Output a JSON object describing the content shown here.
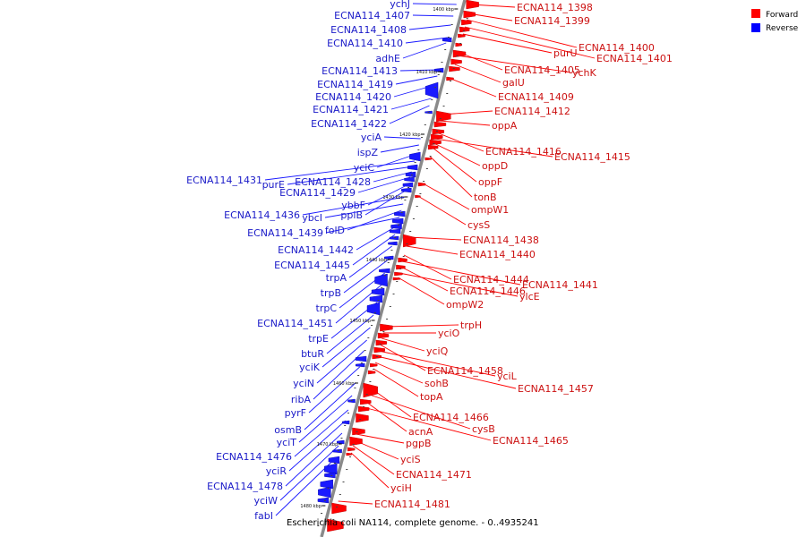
{
  "caption": "Escherichia coli NA114, complete genome. - 0..4935241",
  "legend": {
    "forward": {
      "label": "Forward",
      "color": "#ff0000"
    },
    "reverse": {
      "label": "Reverse",
      "color": "#0000ff"
    }
  },
  "ticks": [
    "1400 kbp",
    "1410 kbp",
    "1420 kbp",
    "1430 kbp",
    "1440 kbp",
    "1450 kbp",
    "1460 kbp",
    "1470 kbp",
    "1480 kbp"
  ],
  "forward_labels": [
    "ECNA114_1398",
    "ECNA114_1399",
    "ECNA114_1400",
    "ECNA114_1401",
    "purU",
    "ECNA114_1405",
    "ychK",
    "galU",
    "ECNA114_1409",
    "ECNA114_1412",
    "oppA",
    "ECNA114_1416",
    "ECNA114_1415",
    "oppD",
    "oppF",
    "tonB",
    "ompW1",
    "cysS",
    "ECNA114_1438",
    "ECNA114_1440",
    "ECNA114_1444",
    "ECNA114_1441",
    "ECNA114_1446",
    "ylcE",
    "ompW2",
    "trpH",
    "yciO",
    "yciQ",
    "ECNA114_1458",
    "yciL",
    "ECNA114_1457",
    "sohB",
    "topA",
    "ECNA114_1466",
    "cysB",
    "acnA",
    "ECNA114_1465",
    "pgpB",
    "yciS",
    "ECNA114_1471",
    "yciH",
    "ECNA114_1481"
  ],
  "reverse_labels": [
    "ychJ",
    "ECNA114_1407",
    "ECNA114_1408",
    "ECNA114_1410",
    "adhE",
    "ECNA114_1413",
    "ECNA114_1419",
    "ECNA114_1420",
    "ECNA114_1421",
    "ECNA114_1422",
    "yciA",
    "ispZ",
    "yciC",
    "ECNA114_1431",
    "purE",
    "ECNA114_1428",
    "ECNA114_1429",
    "ybbF",
    "ppiB",
    "ECNA114_1436",
    "ybcI",
    "folD",
    "ECNA114_1439",
    "ECNA114_1442",
    "ECNA114_1445",
    "trpA",
    "trpB",
    "trpC",
    "ECNA114_1451",
    "trpE",
    "btuR",
    "yciK",
    "yciN",
    "ribA",
    "pyrF",
    "osmB",
    "yciT",
    "ECNA114_1476",
    "yciR",
    "ECNA114_1478",
    "yciW",
    "fabI"
  ]
}
